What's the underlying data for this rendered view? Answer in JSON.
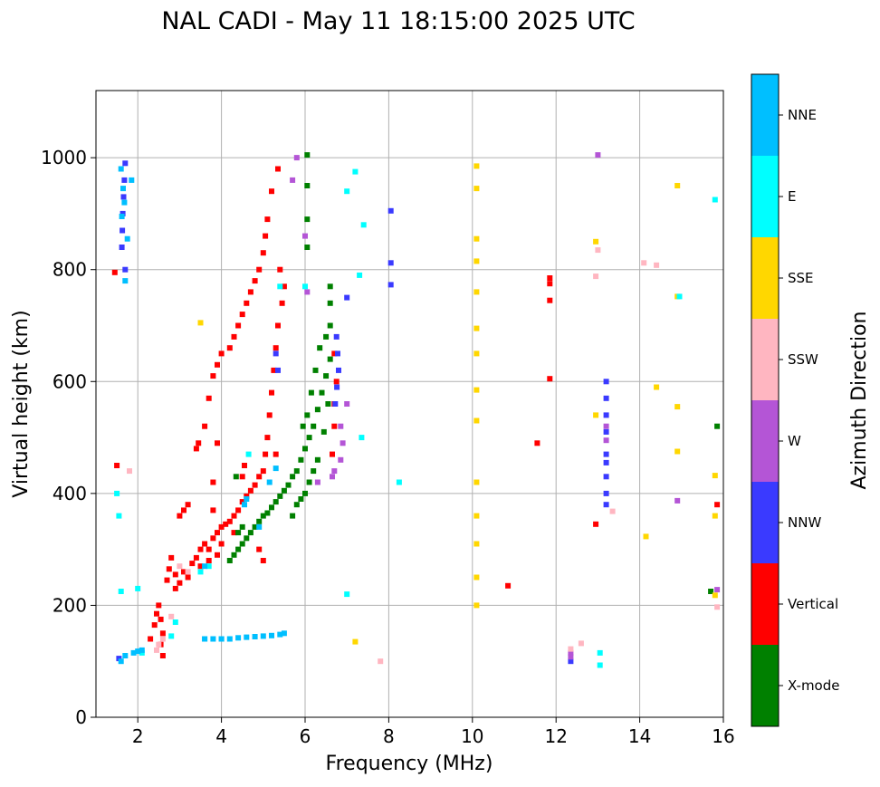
{
  "chart_data": {
    "type": "scatter",
    "title": "NAL CADI - May 11 18:15:00 2025 UTC",
    "xlabel": "Frequency (MHz)",
    "ylabel": "Virtual height (km)",
    "xlim": [
      1,
      16
    ],
    "ylim": [
      0,
      1120
    ],
    "xticks": [
      2,
      4,
      6,
      8,
      10,
      12,
      14,
      16
    ],
    "yticks": [
      0,
      200,
      400,
      600,
      800,
      1000
    ],
    "grid": true,
    "colorbar": {
      "label": "Azimuth Direction",
      "categories": [
        {
          "name": "X-mode",
          "color": "#008000"
        },
        {
          "name": "Vertical",
          "color": "#ff0000"
        },
        {
          "name": "NNW",
          "color": "#3a3aff"
        },
        {
          "name": "W",
          "color": "#b455d6"
        },
        {
          "name": "SSW",
          "color": "#ffb6c1"
        },
        {
          "name": "SSE",
          "color": "#ffd700"
        },
        {
          "name": "E",
          "color": "#00ffff"
        },
        {
          "name": "NNE",
          "color": "#00bfff"
        }
      ]
    },
    "series": [
      {
        "name": "Vertical",
        "color": "#ff0000",
        "points": [
          [
            1.45,
            795
          ],
          [
            1.5,
            450
          ],
          [
            2.3,
            140
          ],
          [
            2.4,
            165
          ],
          [
            2.45,
            185
          ],
          [
            2.5,
            200
          ],
          [
            2.55,
            175
          ],
          [
            2.6,
            150
          ],
          [
            2.7,
            245
          ],
          [
            2.75,
            265
          ],
          [
            2.8,
            285
          ],
          [
            2.9,
            255
          ],
          [
            3.0,
            240
          ],
          [
            3.1,
            260
          ],
          [
            3.2,
            250
          ],
          [
            3.3,
            275
          ],
          [
            3.4,
            285
          ],
          [
            3.5,
            300
          ],
          [
            3.6,
            310
          ],
          [
            3.7,
            300
          ],
          [
            3.8,
            320
          ],
          [
            3.9,
            330
          ],
          [
            4.0,
            340
          ],
          [
            4.1,
            345
          ],
          [
            4.2,
            350
          ],
          [
            4.3,
            360
          ],
          [
            4.4,
            370
          ],
          [
            4.5,
            385
          ],
          [
            4.6,
            395
          ],
          [
            4.7,
            405
          ],
          [
            4.8,
            415
          ],
          [
            4.9,
            430
          ],
          [
            5.0,
            440
          ],
          [
            5.05,
            470
          ],
          [
            5.1,
            500
          ],
          [
            5.15,
            540
          ],
          [
            5.2,
            580
          ],
          [
            5.25,
            620
          ],
          [
            5.3,
            660
          ],
          [
            5.35,
            700
          ],
          [
            3.0,
            360
          ],
          [
            3.1,
            370
          ],
          [
            3.2,
            380
          ],
          [
            3.4,
            480
          ],
          [
            3.45,
            490
          ],
          [
            3.6,
            520
          ],
          [
            3.7,
            570
          ],
          [
            3.8,
            610
          ],
          [
            3.9,
            630
          ],
          [
            4.0,
            650
          ],
          [
            4.2,
            660
          ],
          [
            4.3,
            680
          ],
          [
            4.4,
            700
          ],
          [
            4.5,
            720
          ],
          [
            4.6,
            740
          ],
          [
            4.7,
            760
          ],
          [
            4.8,
            780
          ],
          [
            4.9,
            800
          ],
          [
            5.0,
            830
          ],
          [
            5.05,
            860
          ],
          [
            5.1,
            890
          ],
          [
            5.2,
            940
          ],
          [
            5.35,
            980
          ],
          [
            5.4,
            800
          ],
          [
            5.5,
            770
          ],
          [
            5.45,
            740
          ],
          [
            4.9,
            300
          ],
          [
            5.0,
            280
          ],
          [
            4.3,
            330
          ],
          [
            4.0,
            310
          ],
          [
            3.9,
            290
          ],
          [
            3.7,
            280
          ],
          [
            3.5,
            270
          ],
          [
            2.9,
            230
          ],
          [
            3.8,
            420
          ],
          [
            3.9,
            490
          ],
          [
            3.8,
            370
          ],
          [
            6.7,
            520
          ],
          [
            6.65,
            470
          ],
          [
            6.7,
            560
          ],
          [
            6.75,
            600
          ],
          [
            6.7,
            650
          ],
          [
            10.85,
            235
          ],
          [
            11.55,
            490
          ],
          [
            11.85,
            605
          ],
          [
            11.85,
            745
          ],
          [
            11.85,
            775
          ],
          [
            11.85,
            785
          ],
          [
            12.95,
            345
          ],
          [
            15.85,
            380
          ],
          [
            2.55,
            130
          ],
          [
            2.6,
            110
          ],
          [
            4.5,
            430
          ],
          [
            4.55,
            450
          ],
          [
            5.3,
            470
          ]
        ]
      },
      {
        "name": "X-mode",
        "color": "#008000",
        "points": [
          [
            4.2,
            280
          ],
          [
            4.3,
            290
          ],
          [
            4.4,
            300
          ],
          [
            4.5,
            310
          ],
          [
            4.6,
            320
          ],
          [
            4.7,
            330
          ],
          [
            4.8,
            340
          ],
          [
            4.9,
            350
          ],
          [
            5.0,
            360
          ],
          [
            5.1,
            365
          ],
          [
            5.2,
            375
          ],
          [
            5.3,
            385
          ],
          [
            5.4,
            395
          ],
          [
            5.5,
            405
          ],
          [
            5.6,
            415
          ],
          [
            5.7,
            430
          ],
          [
            5.8,
            440
          ],
          [
            5.9,
            460
          ],
          [
            6.0,
            480
          ],
          [
            6.1,
            500
          ],
          [
            6.2,
            520
          ],
          [
            6.3,
            550
          ],
          [
            6.4,
            580
          ],
          [
            6.5,
            610
          ],
          [
            6.6,
            640
          ],
          [
            6.1,
            420
          ],
          [
            6.2,
            440
          ],
          [
            6.3,
            460
          ],
          [
            6.0,
            400
          ],
          [
            5.9,
            390
          ],
          [
            6.5,
            680
          ],
          [
            6.6,
            700
          ],
          [
            6.35,
            660
          ],
          [
            6.25,
            620
          ],
          [
            6.15,
            580
          ],
          [
            6.05,
            540
          ],
          [
            5.95,
            520
          ],
          [
            6.6,
            740
          ],
          [
            6.6,
            770
          ],
          [
            6.05,
            890
          ],
          [
            6.05,
            1005
          ],
          [
            6.05,
            840
          ],
          [
            6.05,
            950
          ],
          [
            4.4,
            330
          ],
          [
            4.5,
            340
          ],
          [
            4.35,
            430
          ],
          [
            15.7,
            225
          ],
          [
            15.85,
            520
          ],
          [
            5.7,
            360
          ],
          [
            5.8,
            380
          ],
          [
            6.45,
            510
          ],
          [
            6.55,
            560
          ]
        ]
      },
      {
        "name": "NNW",
        "color": "#3a3aff",
        "points": [
          [
            1.7,
            990
          ],
          [
            1.68,
            960
          ],
          [
            1.66,
            930
          ],
          [
            1.64,
            900
          ],
          [
            1.63,
            870
          ],
          [
            1.62,
            840
          ],
          [
            1.7,
            800
          ],
          [
            1.55,
            105
          ],
          [
            6.75,
            680
          ],
          [
            6.78,
            650
          ],
          [
            6.8,
            620
          ],
          [
            6.76,
            590
          ],
          [
            6.72,
            560
          ],
          [
            7.0,
            750
          ],
          [
            8.05,
            905
          ],
          [
            8.05,
            812
          ],
          [
            8.05,
            773
          ],
          [
            13.2,
            600
          ],
          [
            13.2,
            570
          ],
          [
            13.2,
            540
          ],
          [
            13.2,
            510
          ],
          [
            13.2,
            470
          ],
          [
            13.2,
            455
          ],
          [
            13.2,
            430
          ],
          [
            13.2,
            400
          ],
          [
            13.2,
            380
          ],
          [
            5.3,
            650
          ],
          [
            5.35,
            620
          ],
          [
            12.35,
            100
          ]
        ]
      },
      {
        "name": "W",
        "color": "#b455d6",
        "points": [
          [
            13.0,
            1005
          ],
          [
            13.2,
            520
          ],
          [
            13.2,
            495
          ],
          [
            14.9,
            387
          ],
          [
            15.85,
            228
          ],
          [
            12.35,
            115
          ],
          [
            12.35,
            108
          ],
          [
            6.85,
            520
          ],
          [
            6.9,
            490
          ],
          [
            6.85,
            460
          ],
          [
            6.7,
            440
          ],
          [
            6.65,
            430
          ],
          [
            6.0,
            860
          ],
          [
            5.8,
            1000
          ],
          [
            5.7,
            960
          ],
          [
            6.05,
            760
          ],
          [
            6.3,
            420
          ],
          [
            7.0,
            560
          ]
        ]
      },
      {
        "name": "SSW",
        "color": "#ffb6c1",
        "points": [
          [
            13.0,
            835
          ],
          [
            12.95,
            788
          ],
          [
            14.1,
            812
          ],
          [
            14.4,
            808
          ],
          [
            13.35,
            368
          ],
          [
            12.6,
            132
          ],
          [
            7.8,
            100
          ],
          [
            1.8,
            440
          ],
          [
            2.5,
            130
          ],
          [
            2.45,
            120
          ],
          [
            2.6,
            140
          ],
          [
            15.85,
            197
          ],
          [
            12.35,
            122
          ],
          [
            2.8,
            180
          ],
          [
            3.0,
            270
          ],
          [
            3.2,
            260
          ]
        ]
      },
      {
        "name": "SSE",
        "color": "#ffd700",
        "points": [
          [
            10.1,
            985
          ],
          [
            10.1,
            945
          ],
          [
            10.1,
            855
          ],
          [
            10.1,
            815
          ],
          [
            10.1,
            760
          ],
          [
            10.1,
            695
          ],
          [
            10.1,
            650
          ],
          [
            10.1,
            585
          ],
          [
            10.1,
            530
          ],
          [
            10.1,
            420
          ],
          [
            10.1,
            360
          ],
          [
            10.1,
            310
          ],
          [
            10.1,
            250
          ],
          [
            10.1,
            200
          ],
          [
            12.95,
            850
          ],
          [
            12.95,
            540
          ],
          [
            14.9,
            950
          ],
          [
            14.9,
            752
          ],
          [
            14.9,
            555
          ],
          [
            14.9,
            475
          ],
          [
            14.4,
            590
          ],
          [
            14.15,
            323
          ],
          [
            15.8,
            432
          ],
          [
            15.8,
            360
          ],
          [
            15.8,
            218
          ],
          [
            7.2,
            135
          ],
          [
            3.5,
            705
          ]
        ]
      },
      {
        "name": "E",
        "color": "#00ffff",
        "points": [
          [
            7.0,
            940
          ],
          [
            7.4,
            880
          ],
          [
            8.25,
            420
          ],
          [
            7.0,
            220
          ],
          [
            13.05,
            115
          ],
          [
            13.05,
            93
          ],
          [
            14.95,
            752
          ],
          [
            15.8,
            925
          ],
          [
            3.5,
            260
          ],
          [
            3.7,
            270
          ],
          [
            2.9,
            170
          ],
          [
            1.6,
            225
          ],
          [
            1.5,
            400
          ],
          [
            2.0,
            230
          ],
          [
            2.1,
            115
          ],
          [
            3.6,
            140
          ],
          [
            4.0,
            140
          ],
          [
            2.8,
            145
          ],
          [
            5.4,
            770
          ],
          [
            6.0,
            770
          ],
          [
            7.35,
            500
          ],
          [
            4.65,
            470
          ],
          [
            1.55,
            360
          ],
          [
            7.2,
            975
          ],
          [
            7.3,
            790
          ]
        ]
      },
      {
        "name": "NNE",
        "color": "#00bfff",
        "points": [
          [
            3.6,
            140
          ],
          [
            3.8,
            140
          ],
          [
            4.0,
            140
          ],
          [
            4.2,
            140
          ],
          [
            4.4,
            142
          ],
          [
            4.6,
            143
          ],
          [
            4.8,
            144
          ],
          [
            5.0,
            145
          ],
          [
            5.2,
            146
          ],
          [
            5.4,
            148
          ],
          [
            5.5,
            150
          ],
          [
            4.55,
            380
          ],
          [
            4.6,
            390
          ],
          [
            5.15,
            420
          ],
          [
            5.3,
            445
          ],
          [
            3.6,
            270
          ],
          [
            1.9,
            115
          ],
          [
            2.0,
            118
          ],
          [
            2.1,
            120
          ],
          [
            1.7,
            110
          ],
          [
            1.6,
            100
          ],
          [
            1.65,
            945
          ],
          [
            1.68,
            920
          ],
          [
            1.62,
            895
          ],
          [
            1.6,
            980
          ],
          [
            1.85,
            960
          ],
          [
            1.75,
            855
          ],
          [
            1.7,
            780
          ],
          [
            4.9,
            340
          ]
        ]
      }
    ]
  }
}
